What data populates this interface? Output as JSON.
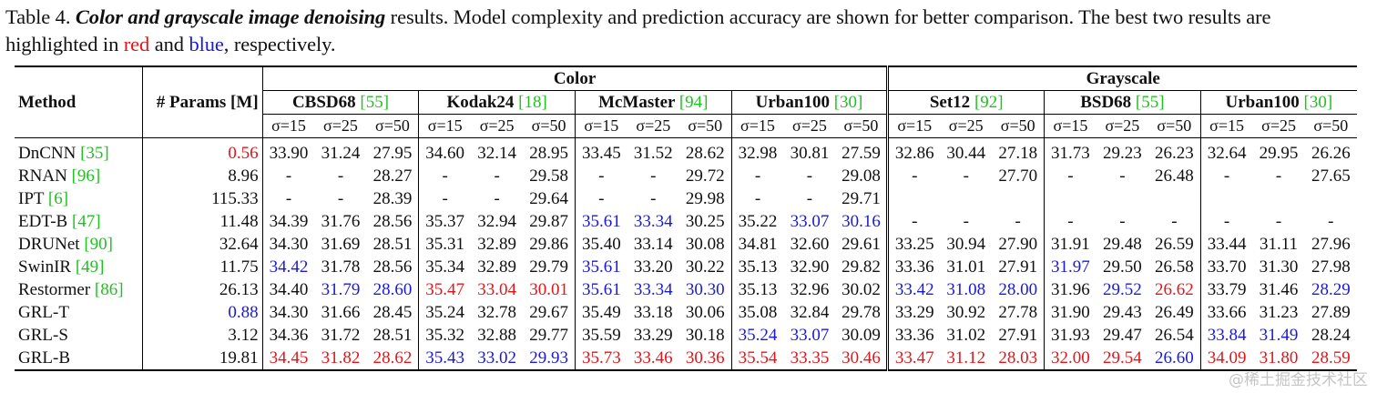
{
  "caption": {
    "label": "Table 4.",
    "title": "Color and grayscale image denoising",
    "rest1": " results. Model complexity and prediction accuracy are shown for better comparison. The best two results are highlighted in ",
    "red_word": "red",
    "and": " and ",
    "blue_word": "blue",
    "rest2": ", respectively."
  },
  "colors": {
    "best": "#e0161b",
    "second": "#1a1ad6",
    "ref": "#1fc21f"
  },
  "header": {
    "method": "Method",
    "params": "# Params [M]",
    "group_color": "Color",
    "group_gray": "Grayscale",
    "datasets": [
      {
        "name": "CBSD68",
        "ref": "[55]"
      },
      {
        "name": "Kodak24",
        "ref": "[18]"
      },
      {
        "name": "McMaster",
        "ref": "[94]"
      },
      {
        "name": "Urban100",
        "ref": "[30]"
      },
      {
        "name": "Set12",
        "ref": "[92]"
      },
      {
        "name": "BSD68",
        "ref": "[55]"
      },
      {
        "name": "Urban100",
        "ref": "[30]"
      }
    ],
    "sigmas": [
      "σ=15",
      "σ=25",
      "σ=50"
    ]
  },
  "rows": [
    {
      "method": "DnCNN",
      "ref": "[35]",
      "params": "0.56",
      "params_hl": "r",
      "values": [
        "33.90",
        "31.24",
        "27.95",
        "34.60",
        "32.14",
        "28.95",
        "33.45",
        "31.52",
        "28.62",
        "32.98",
        "30.81",
        "27.59",
        "32.86",
        "30.44",
        "27.18",
        "31.73",
        "29.23",
        "26.23",
        "32.64",
        "29.95",
        "26.26"
      ],
      "hl": [
        "",
        "",
        "",
        "",
        "",
        "",
        "",
        "",
        "",
        "",
        "",
        "",
        "",
        "",
        "",
        "",
        "",
        "",
        "",
        "",
        ""
      ]
    },
    {
      "method": "RNAN",
      "ref": "[96]",
      "params": "8.96",
      "params_hl": "",
      "values": [
        "-",
        "-",
        "28.27",
        "-",
        "-",
        "29.58",
        "-",
        "-",
        "29.72",
        "-",
        "-",
        "29.08",
        "-",
        "-",
        "27.70",
        "-",
        "-",
        "26.48",
        "-",
        "-",
        "27.65"
      ],
      "hl": [
        "",
        "",
        "",
        "",
        "",
        "",
        "",
        "",
        "",
        "",
        "",
        "",
        "",
        "",
        "",
        "",
        "",
        "",
        "",
        "",
        ""
      ]
    },
    {
      "method": "IPT",
      "ref": "[6]",
      "params": "115.33",
      "params_hl": "",
      "values": [
        "-",
        "-",
        "28.39",
        "-",
        "-",
        "29.64",
        "-",
        "-",
        "29.98",
        "-",
        "-",
        "29.71",
        "",
        "",
        "",
        "",
        "",
        "",
        "",
        "",
        ""
      ],
      "hl": [
        "",
        "",
        "",
        "",
        "",
        "",
        "",
        "",
        "",
        "",
        "",
        "",
        "",
        "",
        "",
        "",
        "",
        "",
        "",
        "",
        ""
      ]
    },
    {
      "method": "EDT-B",
      "ref": "[47]",
      "params": "11.48",
      "params_hl": "",
      "values": [
        "34.39",
        "31.76",
        "28.56",
        "35.37",
        "32.94",
        "29.87",
        "35.61",
        "33.34",
        "30.25",
        "35.22",
        "33.07",
        "30.16",
        "-",
        "-",
        "-",
        "-",
        "-",
        "-",
        "-",
        "-",
        "-"
      ],
      "hl": [
        "",
        "",
        "",
        "",
        "",
        "",
        "b",
        "b",
        "",
        "",
        "b",
        "b",
        "",
        "",
        "",
        "",
        "",
        "",
        "",
        "",
        ""
      ]
    },
    {
      "method": "DRUNet",
      "ref": "[90]",
      "params": "32.64",
      "params_hl": "",
      "values": [
        "34.30",
        "31.69",
        "28.51",
        "35.31",
        "32.89",
        "29.86",
        "35.40",
        "33.14",
        "30.08",
        "34.81",
        "32.60",
        "29.61",
        "33.25",
        "30.94",
        "27.90",
        "31.91",
        "29.48",
        "26.59",
        "33.44",
        "31.11",
        "27.96"
      ],
      "hl": [
        "",
        "",
        "",
        "",
        "",
        "",
        "",
        "",
        "",
        "",
        "",
        "",
        "",
        "",
        "",
        "",
        "",
        "",
        "",
        "",
        ""
      ]
    },
    {
      "method": "SwinIR",
      "ref": "[49]",
      "params": "11.75",
      "params_hl": "",
      "values": [
        "34.42",
        "31.78",
        "28.56",
        "35.34",
        "32.89",
        "29.79",
        "35.61",
        "33.20",
        "30.22",
        "35.13",
        "32.90",
        "29.82",
        "33.36",
        "31.01",
        "27.91",
        "31.97",
        "29.50",
        "26.58",
        "33.70",
        "31.30",
        "27.98"
      ],
      "hl": [
        "b",
        "",
        "",
        "",
        "",
        "",
        "b",
        "",
        "",
        "",
        "",
        "",
        "",
        "",
        "",
        "b",
        "",
        "",
        "",
        "",
        ""
      ]
    },
    {
      "method": "Restormer",
      "ref": "[86]",
      "params": "26.13",
      "params_hl": "",
      "values": [
        "34.40",
        "31.79",
        "28.60",
        "35.47",
        "33.04",
        "30.01",
        "35.61",
        "33.34",
        "30.30",
        "35.13",
        "32.96",
        "30.02",
        "33.42",
        "31.08",
        "28.00",
        "31.96",
        "29.52",
        "26.62",
        "33.79",
        "31.46",
        "28.29"
      ],
      "hl": [
        "",
        "b",
        "b",
        "r",
        "r",
        "r",
        "b",
        "b",
        "b",
        "",
        "",
        "",
        "b",
        "b",
        "b",
        "",
        "b",
        "r",
        "",
        "",
        "b"
      ]
    },
    {
      "method": "GRL-T",
      "ref": "",
      "params": "0.88",
      "params_hl": "b",
      "values": [
        "34.30",
        "31.66",
        "28.45",
        "35.24",
        "32.78",
        "29.67",
        "35.49",
        "33.18",
        "30.06",
        "35.08",
        "32.84",
        "29.78",
        "33.29",
        "30.92",
        "27.78",
        "31.90",
        "29.43",
        "26.49",
        "33.66",
        "31.23",
        "27.89"
      ],
      "hl": [
        "",
        "",
        "",
        "",
        "",
        "",
        "",
        "",
        "",
        "",
        "",
        "",
        "",
        "",
        "",
        "",
        "",
        "",
        "",
        "",
        ""
      ]
    },
    {
      "method": "GRL-S",
      "ref": "",
      "params": "3.12",
      "params_hl": "",
      "values": [
        "34.36",
        "31.72",
        "28.51",
        "35.32",
        "32.88",
        "29.77",
        "35.59",
        "33.29",
        "30.18",
        "35.24",
        "33.07",
        "30.09",
        "33.36",
        "31.02",
        "27.91",
        "31.93",
        "29.47",
        "26.54",
        "33.84",
        "31.49",
        "28.24"
      ],
      "hl": [
        "",
        "",
        "",
        "",
        "",
        "",
        "",
        "",
        "",
        "b",
        "b",
        "",
        "",
        "",
        "",
        "",
        "",
        "",
        "b",
        "b",
        ""
      ]
    },
    {
      "method": "GRL-B",
      "ref": "",
      "params": "19.81",
      "params_hl": "",
      "values": [
        "34.45",
        "31.82",
        "28.62",
        "35.43",
        "33.02",
        "29.93",
        "35.73",
        "33.46",
        "30.36",
        "35.54",
        "33.35",
        "30.46",
        "33.47",
        "31.12",
        "28.03",
        "32.00",
        "29.54",
        "26.60",
        "34.09",
        "31.80",
        "28.59"
      ],
      "hl": [
        "r",
        "r",
        "r",
        "b",
        "b",
        "b",
        "r",
        "r",
        "r",
        "r",
        "r",
        "r",
        "r",
        "r",
        "r",
        "r",
        "r",
        "b",
        "r",
        "r",
        "r"
      ]
    }
  ],
  "watermark": "@稀土掘金技术社区"
}
